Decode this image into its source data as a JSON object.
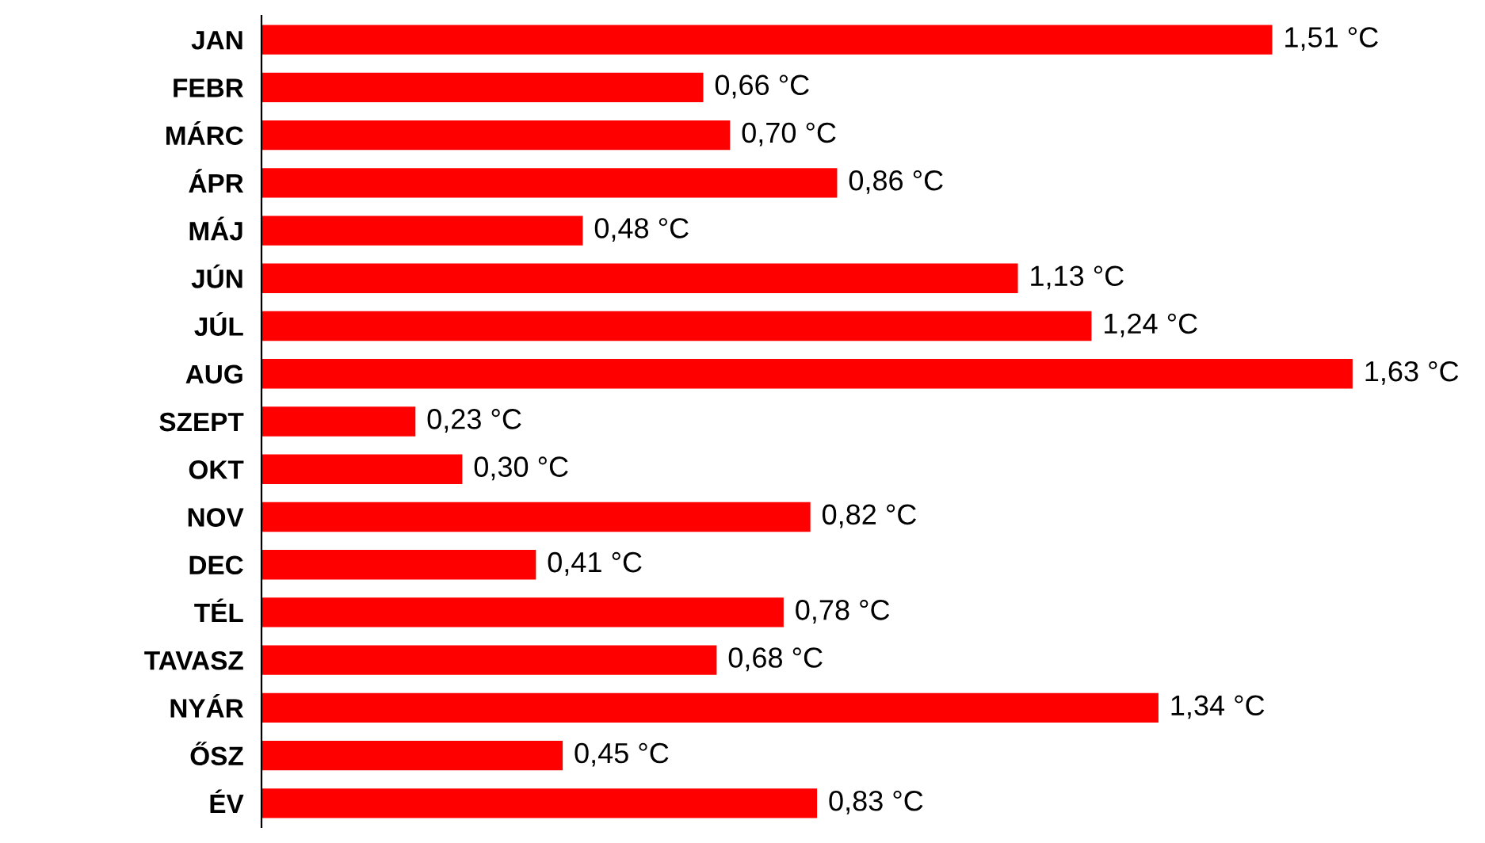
{
  "chart_data": {
    "type": "bar",
    "orientation": "horizontal",
    "categories": [
      "JAN",
      "FEBR",
      "MÁRC",
      "ÁPR",
      "MÁJ",
      "JÚN",
      "JÚL",
      "AUG",
      "SZEPT",
      "OKT",
      "NOV",
      "DEC",
      "TÉL",
      "TAVASZ",
      "NYÁR",
      "ŐSZ",
      "ÉV"
    ],
    "values": [
      1.51,
      0.66,
      0.7,
      0.86,
      0.48,
      1.13,
      1.24,
      1.63,
      0.23,
      0.3,
      0.82,
      0.41,
      0.78,
      0.68,
      1.34,
      0.45,
      0.83
    ],
    "value_labels": [
      "1,51 °C",
      "0,66 °C",
      "0,70 °C",
      "0,86 °C",
      "0,48 °C",
      "1,13 °C",
      "1,24 °C",
      "1,63 °C",
      "0,23 °C",
      "0,30 °C",
      "0,82 °C",
      "0,41 °C",
      "0,78 °C",
      "0,68 °C",
      "1,34 °C",
      "0,45 °C",
      "0,83 °C"
    ],
    "color": "#ff0000",
    "grid": false,
    "legend": false
  }
}
